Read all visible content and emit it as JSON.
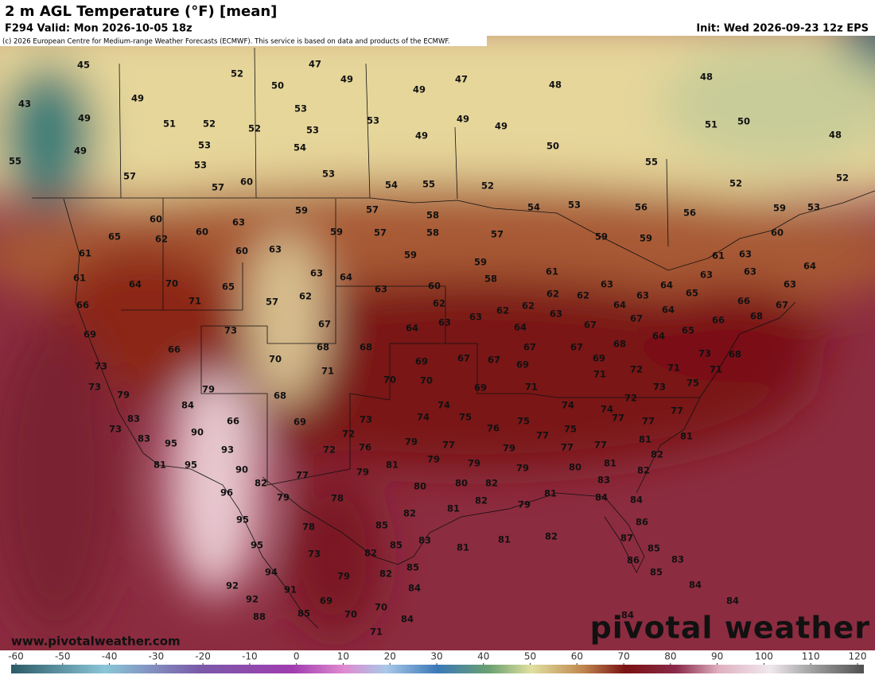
{
  "header": {
    "title": "2 m AGL Temperature (°F) [mean]",
    "valid": "F294 Valid: Mon 2026-10-05 18z",
    "init": "Init: Wed 2026-09-23 12z EPS",
    "credit": "(c) 2026 European Centre for Medium-range Weather Forecasts (ECMWF). This service is based on data and products of the ECMWF."
  },
  "map": {
    "temperatures": [
      45,
      43,
      49,
      49,
      55,
      49,
      51,
      52,
      52,
      53,
      53,
      57,
      57,
      60,
      52,
      53,
      47,
      49,
      50,
      53,
      54,
      53,
      53,
      54,
      55,
      49,
      47,
      49,
      49,
      49,
      48,
      50,
      52,
      55,
      48,
      51,
      50,
      48,
      52,
      52,
      53,
      59,
      60,
      56,
      56,
      53,
      54,
      59,
      59,
      57,
      58,
      58,
      57,
      57,
      59,
      59,
      63,
      63,
      60,
      60,
      60,
      62,
      65,
      61,
      61,
      66,
      64,
      70,
      71,
      65,
      57,
      62,
      63,
      64,
      63,
      59,
      60,
      62,
      59,
      58,
      63,
      63,
      62,
      62,
      61,
      62,
      62,
      63,
      64,
      63,
      64,
      65,
      63,
      61,
      63,
      63,
      63,
      64,
      67,
      66,
      68,
      66,
      65,
      64,
      67,
      64,
      67,
      67,
      68,
      69,
      71,
      72,
      71,
      71,
      73,
      68,
      75,
      73,
      72,
      74,
      74,
      69,
      67,
      67,
      67,
      64,
      63,
      64,
      67,
      68,
      68,
      69,
      70,
      70,
      71,
      70,
      68,
      69,
      72,
      72,
      73,
      76,
      74,
      74,
      75,
      69,
      71,
      75,
      76,
      77,
      79,
      79,
      81,
      79,
      80,
      80,
      79,
      82,
      79,
      79,
      77,
      75,
      77,
      80,
      81,
      81,
      82,
      82,
      83,
      84,
      84,
      81,
      79,
      82,
      81,
      82,
      85,
      85,
      85,
      82,
      82,
      84,
      83,
      81,
      81,
      82,
      86,
      87,
      85,
      86,
      85,
      83,
      84,
      84,
      84,
      77,
      77,
      77,
      81,
      77,
      69,
      66,
      73,
      73,
      79,
      83,
      73,
      83,
      95,
      81,
      90,
      95,
      93,
      79,
      84,
      66,
      73,
      90,
      82,
      77,
      78,
      79,
      96,
      95,
      95,
      78,
      73,
      79,
      94,
      91,
      92,
      92,
      88,
      85,
      69,
      70,
      70,
      71,
      84
    ]
  },
  "colorbar": {
    "ticks": [
      -60,
      -50,
      -40,
      -30,
      -20,
      -10,
      0,
      10,
      20,
      30,
      40,
      50,
      60,
      70,
      80,
      90,
      100,
      110,
      120
    ]
  },
  "footer": {
    "website": "www.pivotalweather.com",
    "logo": "pivotal weather"
  }
}
